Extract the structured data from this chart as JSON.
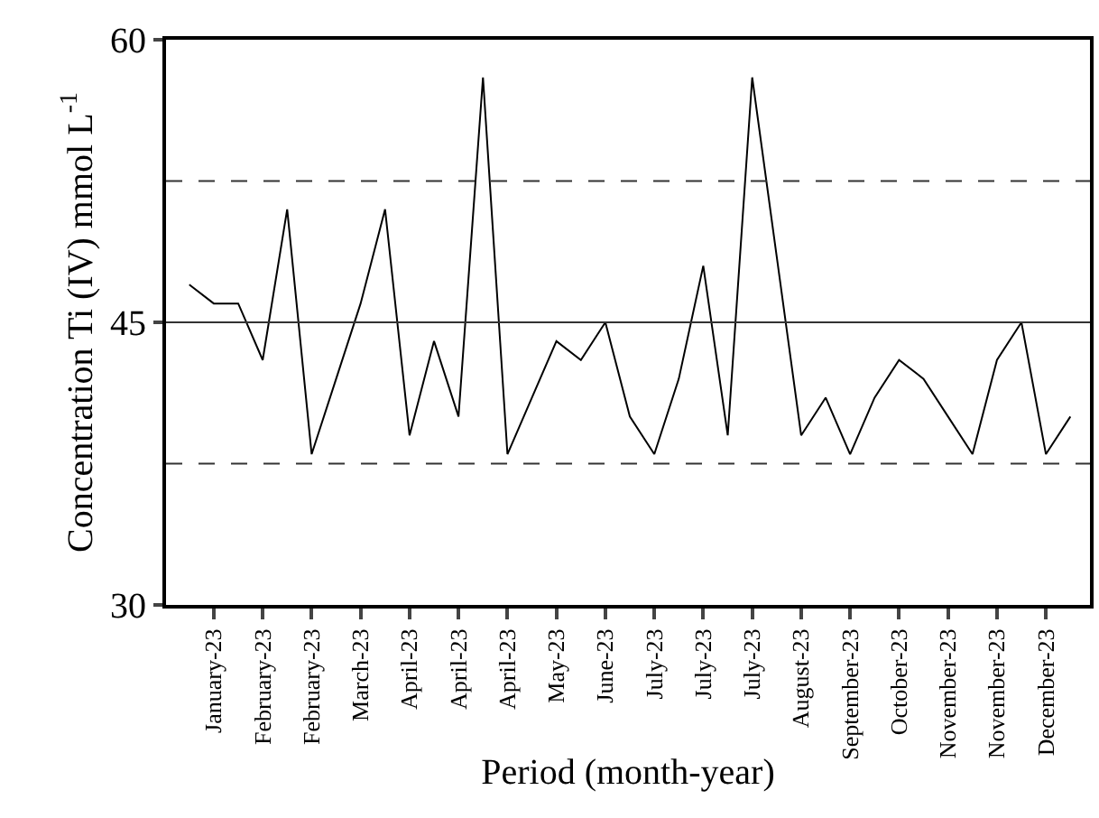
{
  "chart_data": {
    "type": "line",
    "xlabel": "Period (month-year)",
    "ylabel": "Concentration Ti (IV) mmol L$^{-1}$",
    "categories": [
      null,
      "January-23",
      null,
      "February-23",
      null,
      "February-23",
      null,
      "March-23",
      null,
      "April-23",
      null,
      "April-23",
      null,
      "April-23",
      null,
      "May-23",
      null,
      "June-23",
      null,
      "July-23",
      null,
      "July-23",
      null,
      "July-23",
      null,
      "August-23",
      null,
      "September-23",
      null,
      "October-23",
      null,
      "November-23",
      null,
      "November-23",
      null,
      "December-23",
      null
    ],
    "series": [
      {
        "color": "#000000",
        "values": [
          47,
          46,
          46,
          43,
          51,
          38,
          42,
          46,
          51,
          39,
          44,
          40,
          58,
          38,
          41,
          44,
          43,
          45,
          40,
          38,
          42,
          48,
          39,
          58,
          48.5,
          39,
          41,
          38,
          41,
          43,
          42,
          40,
          38,
          43,
          45,
          38,
          40
        ]
      }
    ],
    "ylim": [
      30,
      60
    ],
    "yticks": [
      30,
      45,
      60
    ],
    "ref_lines": [
      {
        "axis": "y",
        "value": 45,
        "color": "#333333",
        "line_style": "solid"
      },
      {
        "axis": "y",
        "value": 52.5,
        "color": "#333333",
        "line_style": "dashed"
      },
      {
        "axis": "y",
        "value": 37.5,
        "color": "#333333",
        "line_style": "dashed"
      }
    ],
    "marker": "none",
    "line_style": "solid"
  }
}
